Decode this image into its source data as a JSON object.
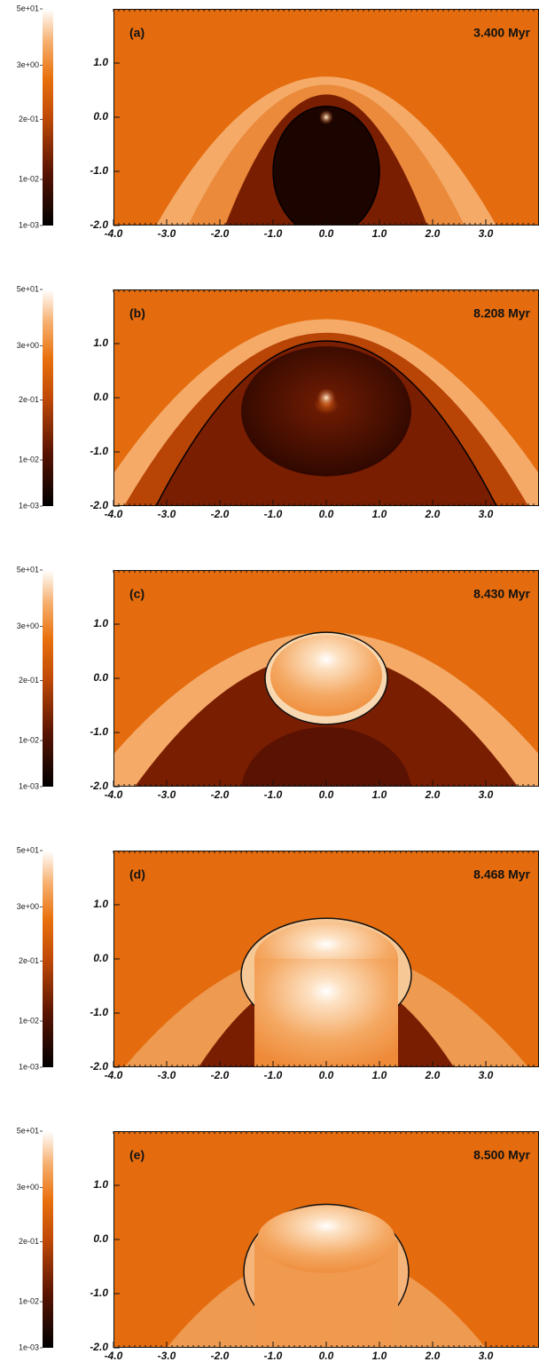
{
  "chart_data": [
    {
      "type": "image",
      "label": "(a)",
      "time": "3.400 Myr",
      "xlim": [
        -4,
        4
      ],
      "ylim": [
        -2,
        2
      ],
      "xticks": [
        {
          "value": -4,
          "label": "-4.0"
        },
        {
          "value": -3,
          "label": "-3.0"
        },
        {
          "value": -2,
          "label": "-2.0"
        },
        {
          "value": -1,
          "label": "-1.0"
        },
        {
          "value": 0,
          "label": "0.0"
        },
        {
          "value": 1,
          "label": "1.0"
        },
        {
          "value": 2,
          "label": "2.0"
        },
        {
          "value": 3,
          "label": "3.0"
        }
      ],
      "yticks": [
        {
          "value": -2,
          "label": "-2.0"
        },
        {
          "value": -1,
          "label": "-1.0"
        },
        {
          "value": 0,
          "label": "0.0"
        },
        {
          "value": 1,
          "label": "1.0"
        }
      ],
      "colorbar": {
        "scale": "log",
        "lim": [
          0.001,
          50
        ],
        "ticks": [
          {
            "value": 50,
            "label": "5e+01"
          },
          {
            "value": 3,
            "label": "3e+00"
          },
          {
            "value": 0.2,
            "label": "2e-01"
          },
          {
            "value": 0.01,
            "label": "1e-02"
          },
          {
            "value": 0.001,
            "label": "1e-03"
          }
        ]
      }
    },
    {
      "type": "image",
      "label": "(b)",
      "time": "8.208 Myr",
      "xlim": [
        -4,
        4
      ],
      "ylim": [
        -2,
        2
      ],
      "xticks": [
        {
          "value": -4,
          "label": "-4.0"
        },
        {
          "value": -3,
          "label": "-3.0"
        },
        {
          "value": -2,
          "label": "-2.0"
        },
        {
          "value": -1,
          "label": "-1.0"
        },
        {
          "value": 0,
          "label": "0.0"
        },
        {
          "value": 1,
          "label": "1.0"
        },
        {
          "value": 2,
          "label": "2.0"
        },
        {
          "value": 3,
          "label": "3.0"
        }
      ],
      "yticks": [
        {
          "value": -2,
          "label": "-2.0"
        },
        {
          "value": -1,
          "label": "-1.0"
        },
        {
          "value": 0,
          "label": "0.0"
        },
        {
          "value": 1,
          "label": "1.0"
        }
      ],
      "colorbar": {
        "scale": "log",
        "lim": [
          0.001,
          50
        ],
        "ticks": [
          {
            "value": 50,
            "label": "5e+01"
          },
          {
            "value": 3,
            "label": "3e+00"
          },
          {
            "value": 0.2,
            "label": "2e-01"
          },
          {
            "value": 0.01,
            "label": "1e-02"
          },
          {
            "value": 0.001,
            "label": "1e-03"
          }
        ]
      }
    },
    {
      "type": "image",
      "label": "(c)",
      "time": "8.430 Myr",
      "xlim": [
        -4,
        4
      ],
      "ylim": [
        -2,
        2
      ],
      "xticks": [
        {
          "value": -4,
          "label": "-4.0"
        },
        {
          "value": -3,
          "label": "-3.0"
        },
        {
          "value": -2,
          "label": "-2.0"
        },
        {
          "value": -1,
          "label": "-1.0"
        },
        {
          "value": 0,
          "label": "0.0"
        },
        {
          "value": 1,
          "label": "1.0"
        },
        {
          "value": 2,
          "label": "2.0"
        },
        {
          "value": 3,
          "label": "3.0"
        }
      ],
      "yticks": [
        {
          "value": -2,
          "label": "-2.0"
        },
        {
          "value": -1,
          "label": "-1.0"
        },
        {
          "value": 0,
          "label": "0.0"
        },
        {
          "value": 1,
          "label": "1.0"
        }
      ],
      "colorbar": {
        "scale": "log",
        "lim": [
          0.001,
          50
        ],
        "ticks": [
          {
            "value": 50,
            "label": "5e+01"
          },
          {
            "value": 3,
            "label": "3e+00"
          },
          {
            "value": 0.2,
            "label": "2e-01"
          },
          {
            "value": 0.01,
            "label": "1e-02"
          },
          {
            "value": 0.001,
            "label": "1e-03"
          }
        ]
      }
    },
    {
      "type": "image",
      "label": "(d)",
      "time": "8.468 Myr",
      "xlim": [
        -4,
        4
      ],
      "ylim": [
        -2,
        2
      ],
      "xticks": [
        {
          "value": -4,
          "label": "-4.0"
        },
        {
          "value": -3,
          "label": "-3.0"
        },
        {
          "value": -2,
          "label": "-2.0"
        },
        {
          "value": -1,
          "label": "-1.0"
        },
        {
          "value": 0,
          "label": "0.0"
        },
        {
          "value": 1,
          "label": "1.0"
        },
        {
          "value": 2,
          "label": "2.0"
        },
        {
          "value": 3,
          "label": "3.0"
        }
      ],
      "yticks": [
        {
          "value": -2,
          "label": "-2.0"
        },
        {
          "value": -1,
          "label": "-1.0"
        },
        {
          "value": 0,
          "label": "0.0"
        },
        {
          "value": 1,
          "label": "1.0"
        }
      ],
      "colorbar": {
        "scale": "log",
        "lim": [
          0.001,
          50
        ],
        "ticks": [
          {
            "value": 50,
            "label": "5e+01"
          },
          {
            "value": 3,
            "label": "3e+00"
          },
          {
            "value": 0.2,
            "label": "2e-01"
          },
          {
            "value": 0.01,
            "label": "1e-02"
          },
          {
            "value": 0.001,
            "label": "1e-03"
          }
        ]
      }
    },
    {
      "type": "image",
      "label": "(e)",
      "time": "8.500 Myr",
      "xlim": [
        -4,
        4
      ],
      "ylim": [
        -2,
        2
      ],
      "xticks": [
        {
          "value": -4,
          "label": "-4.0"
        },
        {
          "value": -3,
          "label": "-3.0"
        },
        {
          "value": -2,
          "label": "-2.0"
        },
        {
          "value": -1,
          "label": "-1.0"
        },
        {
          "value": 0,
          "label": "0.0"
        },
        {
          "value": 1,
          "label": "1.0"
        },
        {
          "value": 2,
          "label": "2.0"
        },
        {
          "value": 3,
          "label": "3.0"
        }
      ],
      "yticks": [
        {
          "value": -2,
          "label": "-2.0"
        },
        {
          "value": -1,
          "label": "-1.0"
        },
        {
          "value": 0,
          "label": "0.0"
        },
        {
          "value": 1,
          "label": "1.0"
        }
      ],
      "colorbar": {
        "scale": "log",
        "lim": [
          0.001,
          50
        ],
        "ticks": [
          {
            "value": 50,
            "label": "5e+01"
          },
          {
            "value": 3,
            "label": "3e+00"
          },
          {
            "value": 0.2,
            "label": "2e-01"
          },
          {
            "value": 0.01,
            "label": "1e-02"
          },
          {
            "value": 0.001,
            "label": "1e-03"
          }
        ]
      }
    }
  ]
}
